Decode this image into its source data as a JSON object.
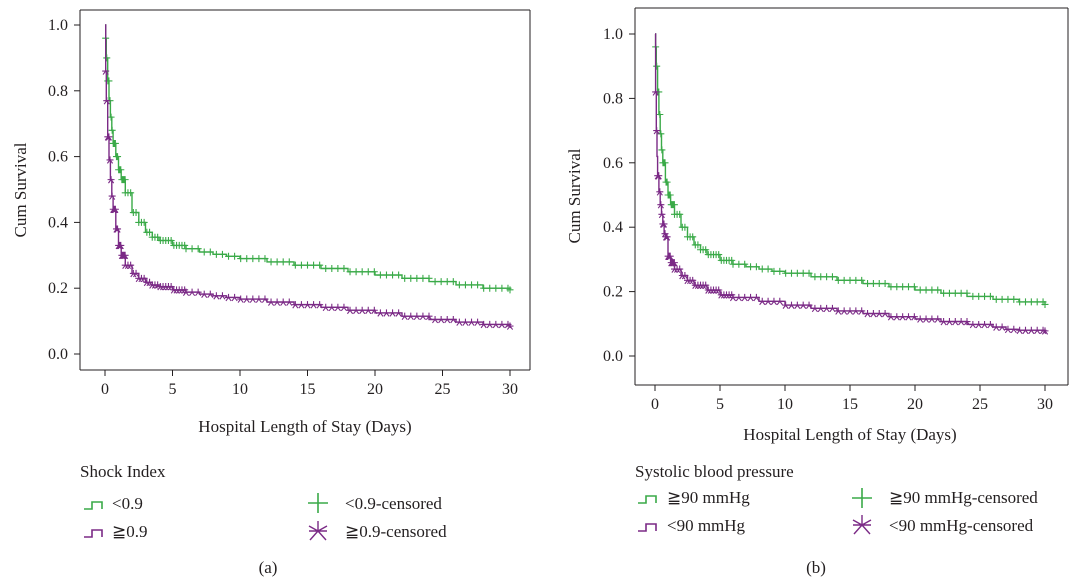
{
  "colors": {
    "green": "#3aaa48",
    "purple": "#7b2a86",
    "axis": "#231f20"
  },
  "chart_data": [
    {
      "type": "line",
      "subtype": "kaplan-meier",
      "panel_label": "(a)",
      "xlabel": "Hospital Length of Stay (Days)",
      "ylabel": "Cum Survival",
      "xlim": [
        0,
        30
      ],
      "ylim": [
        0,
        1
      ],
      "xticks": [
        "0",
        "5",
        "10",
        "15",
        "20",
        "25",
        "30"
      ],
      "yticks": [
        "0.0",
        "0.2",
        "0.4",
        "0.6",
        "0.8",
        "1.0"
      ],
      "grid": false,
      "legend": {
        "placement": "bottom",
        "title": "Shock Index",
        "entries": [
          "<0.9",
          "≧0.9",
          "<0.9-censored",
          "≧0.9-censored"
        ]
      },
      "series": [
        {
          "name": "<0.9",
          "color": "#3aaa48",
          "censor_marker": "plus",
          "x": [
            0,
            0.05,
            0.1,
            0.2,
            0.3,
            0.4,
            0.5,
            0.6,
            0.8,
            1.0,
            1.2,
            1.5,
            2.0,
            2.5,
            3,
            3.5,
            4,
            5,
            6,
            7,
            8,
            9,
            10,
            12,
            14,
            16,
            18,
            20,
            22,
            24,
            26,
            28,
            30
          ],
          "y": [
            1.0,
            0.96,
            0.9,
            0.83,
            0.77,
            0.72,
            0.68,
            0.64,
            0.6,
            0.56,
            0.53,
            0.49,
            0.43,
            0.4,
            0.37,
            0.355,
            0.345,
            0.33,
            0.32,
            0.31,
            0.303,
            0.297,
            0.29,
            0.28,
            0.27,
            0.26,
            0.25,
            0.24,
            0.23,
            0.22,
            0.21,
            0.2,
            0.195
          ]
        },
        {
          "name": "≧0.9",
          "color": "#7b2a86",
          "censor_marker": "star",
          "x": [
            0,
            0.05,
            0.1,
            0.2,
            0.3,
            0.4,
            0.5,
            0.6,
            0.8,
            1.0,
            1.2,
            1.5,
            2.0,
            2.5,
            3,
            3.5,
            4,
            5,
            6,
            7,
            8,
            9,
            10,
            12,
            14,
            16,
            18,
            20,
            22,
            24,
            26,
            28,
            30
          ],
          "y": [
            1.0,
            0.86,
            0.77,
            0.66,
            0.59,
            0.53,
            0.48,
            0.44,
            0.38,
            0.33,
            0.3,
            0.27,
            0.245,
            0.23,
            0.218,
            0.21,
            0.205,
            0.195,
            0.188,
            0.182,
            0.177,
            0.172,
            0.167,
            0.158,
            0.15,
            0.142,
            0.133,
            0.125,
            0.115,
            0.105,
            0.097,
            0.09,
            0.085
          ]
        }
      ]
    },
    {
      "type": "line",
      "subtype": "kaplan-meier",
      "panel_label": "(b)",
      "xlabel": "Hospital Length of Stay (Days)",
      "ylabel": "Cum Survival",
      "xlim": [
        0,
        30
      ],
      "ylim": [
        0,
        1
      ],
      "xticks": [
        "0",
        "5",
        "10",
        "15",
        "20",
        "25",
        "30"
      ],
      "yticks": [
        "0.0",
        "0.2",
        "0.4",
        "0.6",
        "0.8",
        "1.0"
      ],
      "grid": false,
      "legend": {
        "placement": "bottom",
        "title": "Systolic blood pressure",
        "entries": [
          "≧90 mmHg",
          "<90 mmHg",
          "≧90 mmHg-censored",
          "<90 mmHg-censored"
        ]
      },
      "series": [
        {
          "name": "≧90 mmHg",
          "color": "#3aaa48",
          "censor_marker": "plus",
          "x": [
            0,
            0.05,
            0.1,
            0.2,
            0.3,
            0.4,
            0.5,
            0.6,
            0.8,
            1.0,
            1.2,
            1.5,
            2.0,
            2.5,
            3,
            3.5,
            4,
            5,
            6,
            7,
            8,
            9,
            10,
            12,
            14,
            16,
            18,
            20,
            22,
            24,
            26,
            28,
            30
          ],
          "y": [
            1.0,
            0.96,
            0.9,
            0.82,
            0.75,
            0.69,
            0.64,
            0.6,
            0.54,
            0.5,
            0.47,
            0.44,
            0.4,
            0.37,
            0.345,
            0.33,
            0.315,
            0.297,
            0.285,
            0.277,
            0.27,
            0.263,
            0.257,
            0.246,
            0.235,
            0.225,
            0.215,
            0.205,
            0.195,
            0.185,
            0.176,
            0.168,
            0.16
          ]
        },
        {
          "name": "<90 mmHg",
          "color": "#7b2a86",
          "censor_marker": "star",
          "x": [
            0,
            0.05,
            0.1,
            0.15,
            0.2,
            0.3,
            0.4,
            0.5,
            0.6,
            0.7,
            0.8,
            1.0,
            1.2,
            1.5,
            2.0,
            2.5,
            3,
            4,
            5,
            6,
            8,
            10,
            12,
            14,
            16,
            18,
            20,
            22,
            24,
            26,
            27,
            28,
            30
          ],
          "y": [
            1.0,
            0.82,
            0.7,
            0.62,
            0.56,
            0.51,
            0.47,
            0.44,
            0.41,
            0.38,
            0.37,
            0.31,
            0.29,
            0.27,
            0.25,
            0.235,
            0.22,
            0.205,
            0.19,
            0.182,
            0.17,
            0.158,
            0.148,
            0.14,
            0.132,
            0.122,
            0.115,
            0.107,
            0.098,
            0.09,
            0.083,
            0.08,
            0.078
          ]
        }
      ]
    }
  ]
}
